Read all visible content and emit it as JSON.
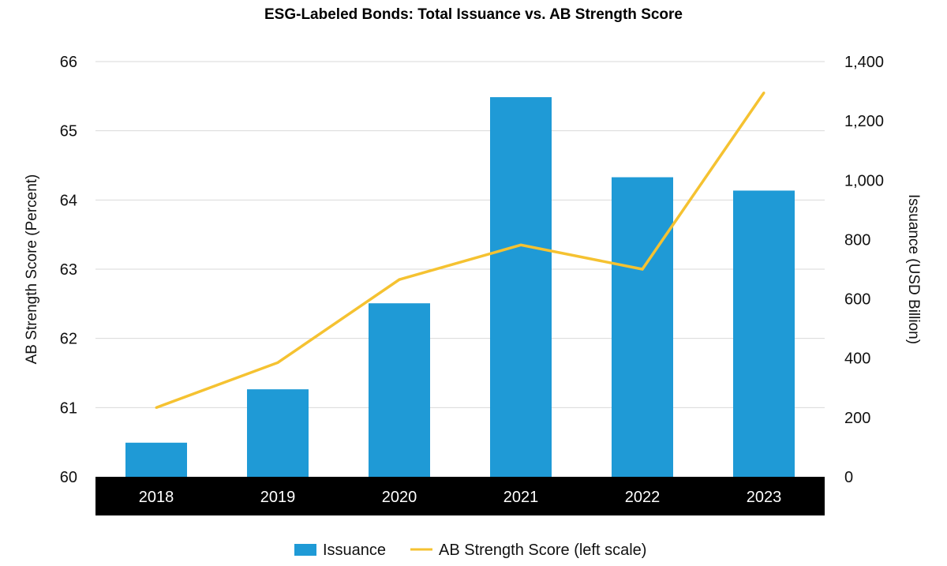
{
  "chart_data": {
    "type": "bar+line",
    "title": "ESG-Labeled Bonds: Total Issuance vs. AB Strength Score",
    "categories": [
      "2018",
      "2019",
      "2020",
      "2021",
      "2022",
      "2023"
    ],
    "series": [
      {
        "name": "Issuance",
        "type": "bar",
        "axis": "right",
        "color": "#1f9ad6",
        "values": [
          115,
          295,
          585,
          1280,
          1010,
          965
        ]
      },
      {
        "name": "AB Strength Score (left scale)",
        "type": "line",
        "axis": "left",
        "color": "#f5c231",
        "values": [
          61.0,
          61.65,
          62.85,
          63.35,
          63.0,
          65.55
        ]
      }
    ],
    "left_axis": {
      "label": "AB Strength Score (Percent)",
      "min": 60,
      "max": 66,
      "ticks": [
        60,
        61,
        62,
        63,
        64,
        65,
        66
      ],
      "tick_labels": [
        "60",
        "61",
        "62",
        "63",
        "64",
        "65",
        "66"
      ]
    },
    "right_axis": {
      "label": "Issuance (USD Billion)",
      "min": 0,
      "max": 1400,
      "ticks": [
        0,
        200,
        400,
        600,
        800,
        1000,
        1200,
        1400
      ],
      "tick_labels": [
        "0",
        "200",
        "400",
        "600",
        "800",
        "1,000",
        "1,200",
        "1,400"
      ]
    },
    "grid": true,
    "legend": {
      "position": "bottom",
      "entries": [
        "Issuance",
        "AB Strength Score (left scale)"
      ]
    }
  }
}
